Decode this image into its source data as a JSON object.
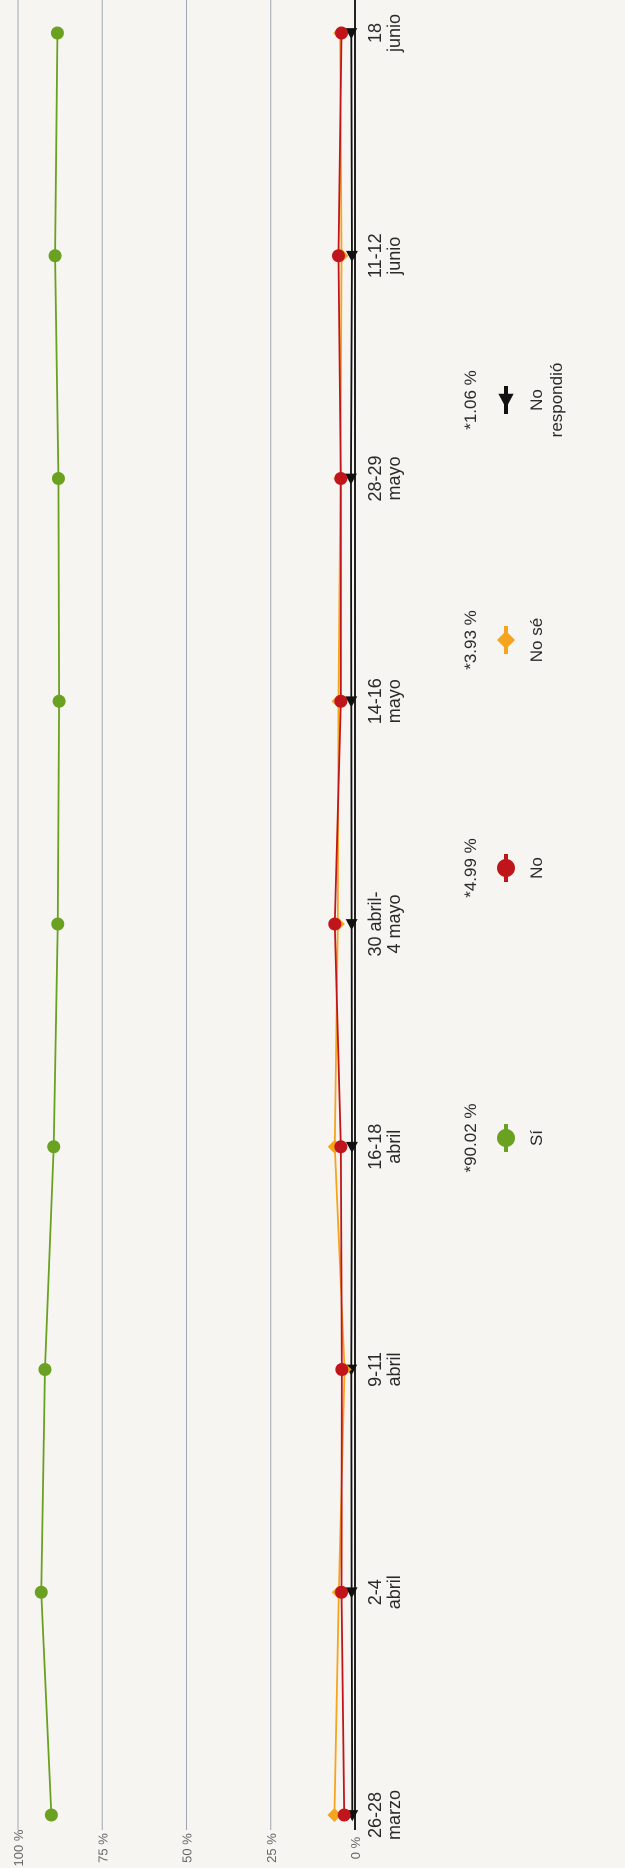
{
  "chart_data": {
    "type": "line",
    "orientation": "rotated-90",
    "y_axis": {
      "ticks": [
        "0 %",
        "25 %",
        "50 %",
        "75 %",
        "100 %"
      ],
      "range": [
        0,
        100
      ]
    },
    "categories": [
      [
        "26-28",
        "marzo"
      ],
      [
        "2-4",
        "abril"
      ],
      [
        "9-11",
        "abril"
      ],
      [
        "16-18",
        "abril"
      ],
      [
        "30 abril-",
        "4 mayo"
      ],
      [
        "14-16",
        "mayo"
      ],
      [
        "28-29",
        "mayo"
      ],
      [
        "11-12",
        "junio"
      ],
      [
        "18",
        "junio"
      ]
    ],
    "series": [
      {
        "name": "Sí",
        "legend_value": "*90.02 %",
        "color": "#6aa121",
        "marker": "circle",
        "values": [
          90.1,
          93.1,
          92.0,
          89.4,
          88.2,
          87.8,
          88.0,
          89.0,
          88.3
        ]
      },
      {
        "name": "No",
        "legend_value": "*4.99 %",
        "color": "#c0161b",
        "marker": "circle",
        "values": [
          3.2,
          4.0,
          3.9,
          4.2,
          6.0,
          4.2,
          4.2,
          4.9,
          4.0
        ]
      },
      {
        "name": "No sé",
        "legend_value": "*3.93 %",
        "color": "#f5a51d",
        "marker": "diamond",
        "values": [
          6.1,
          4.8,
          3.1,
          6.0,
          5.1,
          4.9,
          4.3,
          4.0,
          4.4
        ]
      },
      {
        "name": "No respondió",
        "name_lines": [
          "No",
          "respondió"
        ],
        "legend_value": "*1.06 %",
        "color": "#111111",
        "marker": "triangle",
        "values": [
          0.8,
          1.0,
          1.1,
          0.9,
          1.0,
          1.1,
          1.2,
          0.9,
          1.1
        ]
      }
    ],
    "grid": true,
    "legend_position": "bottom"
  }
}
